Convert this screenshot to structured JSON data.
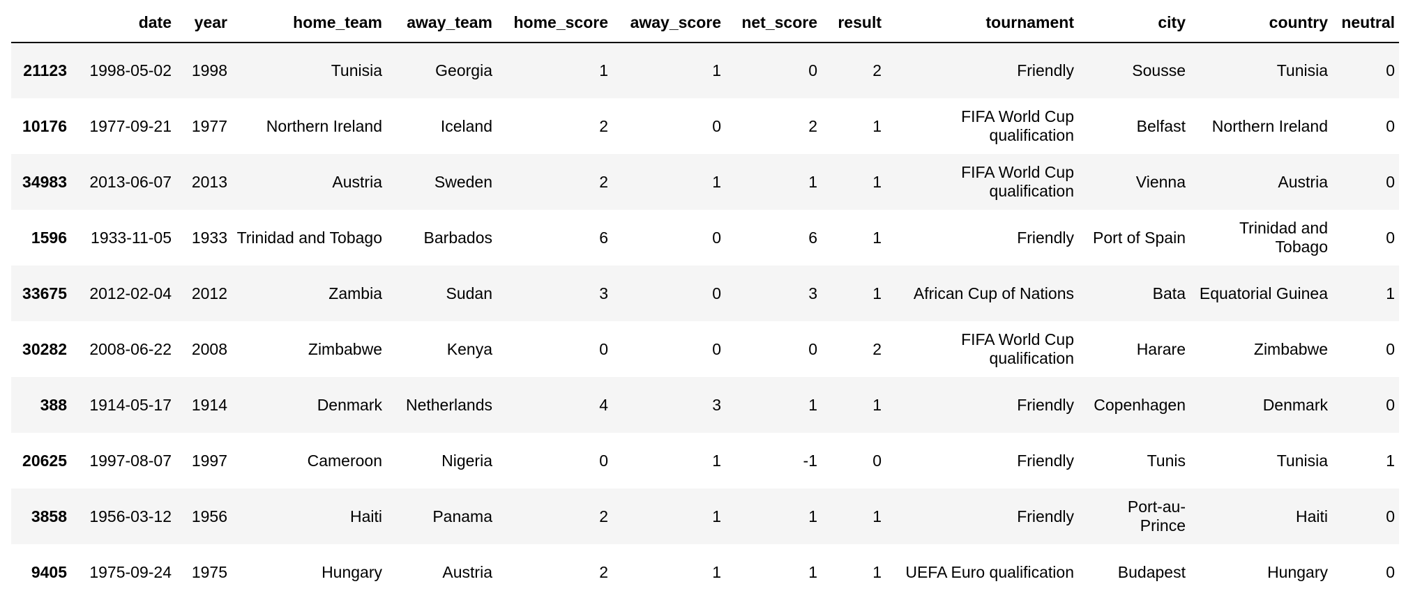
{
  "table": {
    "columns": [
      "",
      "date",
      "year",
      "home_team",
      "away_team",
      "home_score",
      "away_score",
      "net_score",
      "result",
      "tournament",
      "city",
      "country",
      "neutral"
    ],
    "rows": [
      {
        "index": "21123",
        "cells": [
          "1998-05-02",
          "1998",
          "Tunisia",
          "Georgia",
          "1",
          "1",
          "0",
          "2",
          "Friendly",
          "Sousse",
          "Tunisia",
          "0"
        ]
      },
      {
        "index": "10176",
        "cells": [
          "1977-09-21",
          "1977",
          "Northern Ireland",
          "Iceland",
          "2",
          "0",
          "2",
          "1",
          "FIFA World Cup qualification",
          "Belfast",
          "Northern Ireland",
          "0"
        ]
      },
      {
        "index": "34983",
        "cells": [
          "2013-06-07",
          "2013",
          "Austria",
          "Sweden",
          "2",
          "1",
          "1",
          "1",
          "FIFA World Cup qualification",
          "Vienna",
          "Austria",
          "0"
        ]
      },
      {
        "index": "1596",
        "cells": [
          "1933-11-05",
          "1933",
          "Trinidad and Tobago",
          "Barbados",
          "6",
          "0",
          "6",
          "1",
          "Friendly",
          "Port of Spain",
          "Trinidad and Tobago",
          "0"
        ]
      },
      {
        "index": "33675",
        "cells": [
          "2012-02-04",
          "2012",
          "Zambia",
          "Sudan",
          "3",
          "0",
          "3",
          "1",
          "African Cup of Nations",
          "Bata",
          "Equatorial Guinea",
          "1"
        ]
      },
      {
        "index": "30282",
        "cells": [
          "2008-06-22",
          "2008",
          "Zimbabwe",
          "Kenya",
          "0",
          "0",
          "0",
          "2",
          "FIFA World Cup qualification",
          "Harare",
          "Zimbabwe",
          "0"
        ]
      },
      {
        "index": "388",
        "cells": [
          "1914-05-17",
          "1914",
          "Denmark",
          "Netherlands",
          "4",
          "3",
          "1",
          "1",
          "Friendly",
          "Copenhagen",
          "Denmark",
          "0"
        ]
      },
      {
        "index": "20625",
        "cells": [
          "1997-08-07",
          "1997",
          "Cameroon",
          "Nigeria",
          "0",
          "1",
          "-1",
          "0",
          "Friendly",
          "Tunis",
          "Tunisia",
          "1"
        ]
      },
      {
        "index": "3858",
        "cells": [
          "1956-03-12",
          "1956",
          "Haiti",
          "Panama",
          "2",
          "1",
          "1",
          "1",
          "Friendly",
          "Port-au-Prince",
          "Haiti",
          "0"
        ]
      },
      {
        "index": "9405",
        "cells": [
          "1975-09-24",
          "1975",
          "Hungary",
          "Austria",
          "2",
          "1",
          "1",
          "1",
          "UEFA Euro qualification",
          "Budapest",
          "Hungary",
          "0"
        ]
      }
    ]
  }
}
